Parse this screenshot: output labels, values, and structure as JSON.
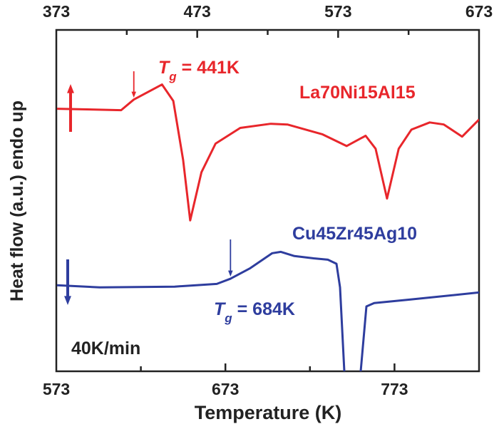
{
  "chart_data": {
    "type": "line",
    "xlabel": "Temperature (K)",
    "ylabel": "Heat flow (a.u.) endo up",
    "grid": false,
    "x_bottom": {
      "range": [
        573,
        823
      ],
      "ticks": [
        573,
        673,
        773
      ],
      "minor_step": 50
    },
    "x_top": {
      "range": [
        373,
        673
      ],
      "ticks": [
        373,
        473,
        573,
        673
      ],
      "minor_step": 50
    },
    "ylim": [
      0,
      100
    ],
    "series": [
      {
        "name": "La70Ni15Al15",
        "axis": "top",
        "color": "#e8262b",
        "x": [
          373.5,
          419,
          428,
          448,
          456,
          463,
          468,
          476,
          486,
          503.5,
          525,
          537,
          562,
          579,
          592.5,
          599.6,
          607.7,
          616,
          625,
          638,
          648,
          661,
          673
        ],
        "y": [
          76.9,
          76.5,
          79.6,
          84,
          79.2,
          61.9,
          44.2,
          58.3,
          66.7,
          71.3,
          72.5,
          72.3,
          69.4,
          66,
          69,
          65.2,
          50.6,
          65.2,
          70.8,
          72.9,
          72.3,
          68.75,
          73.75
        ]
      },
      {
        "name": "Cu45Zr45Ag10",
        "axis": "bottom",
        "color": "#2e3d9e",
        "x": [
          573.4,
          598.7,
          643,
          667.9,
          675.9,
          687.7,
          700.7,
          705.8,
          713.8,
          725.2,
          733.6,
          738.7,
          740.8,
          743.3,
          745,
          752,
          753,
          756.4,
          761,
          782,
          823
        ],
        "y": [
          25.2,
          24.6,
          24.8,
          25.6,
          27.1,
          30.2,
          34.6,
          35,
          33.75,
          33.1,
          32.7,
          31.5,
          24.6,
          0,
          -10,
          -10,
          0,
          19,
          20,
          21,
          23.1
        ]
      }
    ],
    "annotations": {
      "red_tg": {
        "tg_symbol": "T",
        "tg_sub": "g",
        "text": " = 441K",
        "arrow_x": 428,
        "color": "#e8262b"
      },
      "blue_tg": {
        "tg_symbol": "T",
        "tg_sub": "g",
        "text": " = 684K",
        "arrow_x": 676,
        "color": "#2e3d9e"
      },
      "rate": "40K/min",
      "red_direction": "up-arrow",
      "blue_direction": "down-arrow"
    }
  }
}
